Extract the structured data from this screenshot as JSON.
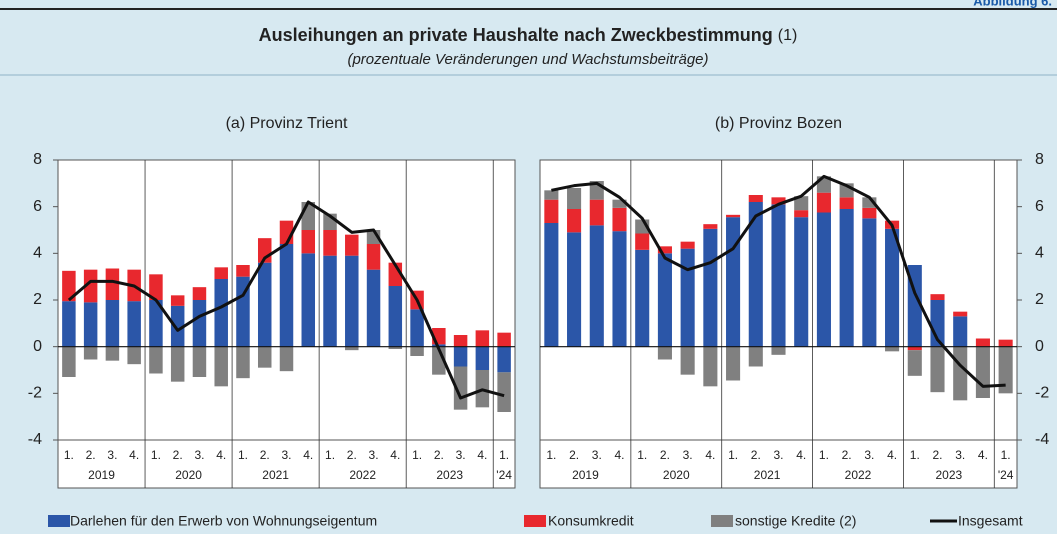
{
  "header": {
    "figure_label": "Abbildung 6.",
    "title": "Ausleihungen an private Haushalte nach Zweckbestimmung",
    "title_note": "(1)",
    "subtitle": "(prozentuale Veränderungen und Wachstumsbeiträge)"
  },
  "chart_data": [
    {
      "type": "bar",
      "title": "(a) Provinz Trient",
      "stacked": true,
      "categories": [
        "1.",
        "2.",
        "3.",
        "4.",
        "1.",
        "2.",
        "3.",
        "4.",
        "1.",
        "2.",
        "3.",
        "4.",
        "1.",
        "2.",
        "3.",
        "4.",
        "1.",
        "2.",
        "3.",
        "4.",
        "1."
      ],
      "groups": [
        "2019",
        "2020",
        "2021",
        "2022",
        "2023",
        "'24"
      ],
      "ylim": [
        -4,
        8
      ],
      "yticks": [
        -4,
        -2,
        0,
        2,
        4,
        6,
        8
      ],
      "series": [
        {
          "name": "Darlehen für den Erwerb von Wohnungseigentum",
          "color": "#2b56a8",
          "values": [
            1.95,
            1.9,
            2.0,
            1.95,
            2.0,
            1.75,
            2.0,
            2.9,
            3.0,
            3.6,
            4.4,
            4.0,
            3.9,
            3.9,
            3.3,
            2.6,
            1.6,
            0.1,
            -0.85,
            -1.0,
            -1.1
          ]
        },
        {
          "name": "Konsumkredit",
          "color": "#e8282e",
          "values": [
            1.3,
            1.4,
            1.35,
            1.35,
            1.1,
            0.45,
            0.55,
            0.5,
            0.5,
            1.05,
            1.0,
            1.0,
            1.1,
            0.9,
            1.1,
            1.0,
            0.8,
            0.7,
            0.5,
            0.7,
            0.6
          ]
        },
        {
          "name": "sonstige Kredite (2)",
          "color": "#808080",
          "values": [
            -1.3,
            -0.55,
            -0.6,
            -0.75,
            -1.15,
            -1.5,
            -1.3,
            -1.7,
            -1.35,
            -0.9,
            -1.05,
            1.2,
            0.7,
            -0.15,
            0.6,
            -0.1,
            -0.4,
            -1.2,
            -1.85,
            -1.6,
            -1.7
          ]
        },
        {
          "name": "Insgesamt",
          "color": "#111111",
          "type": "line",
          "values": [
            2.0,
            2.8,
            2.8,
            2.6,
            2.0,
            0.7,
            1.3,
            1.7,
            2.2,
            3.8,
            4.4,
            6.2,
            5.6,
            4.9,
            5.0,
            3.5,
            2.0,
            -0.1,
            -2.2,
            -1.85,
            -2.1
          ]
        }
      ]
    },
    {
      "type": "bar",
      "title": "(b) Provinz Bozen",
      "stacked": true,
      "categories": [
        "1.",
        "2.",
        "3.",
        "4.",
        "1.",
        "2.",
        "3.",
        "4.",
        "1.",
        "2.",
        "3.",
        "4.",
        "1.",
        "2.",
        "3.",
        "4.",
        "1.",
        "2.",
        "3.",
        "4.",
        "1."
      ],
      "groups": [
        "2019",
        "2020",
        "2021",
        "2022",
        "2023",
        "'24"
      ],
      "ylim": [
        -4,
        8
      ],
      "yticks": [
        -4,
        -2,
        0,
        2,
        4,
        6,
        8
      ],
      "series": [
        {
          "name": "Darlehen für den Erwerb von Wohnungseigentum",
          "color": "#2b56a8",
          "values": [
            5.3,
            4.9,
            5.2,
            4.95,
            4.15,
            4.0,
            4.2,
            5.05,
            5.55,
            6.2,
            6.1,
            5.55,
            5.75,
            5.9,
            5.5,
            5.05,
            3.5,
            2.0,
            1.3,
            0.0,
            0.0
          ]
        },
        {
          "name": "Konsumkredit",
          "color": "#e8282e",
          "values": [
            1.0,
            1.0,
            1.1,
            1.0,
            0.7,
            0.3,
            0.3,
            0.2,
            0.1,
            0.3,
            0.3,
            0.3,
            0.85,
            0.5,
            0.45,
            0.35,
            -0.15,
            0.25,
            0.2,
            0.35,
            0.3
          ]
        },
        {
          "name": "sonstige Kredite (2)",
          "color": "#808080",
          "values": [
            0.4,
            0.9,
            0.8,
            0.35,
            0.6,
            -0.55,
            -1.2,
            -1.7,
            -1.45,
            -0.85,
            -0.35,
            0.6,
            0.7,
            0.6,
            0.45,
            -0.2,
            -1.1,
            -1.95,
            -2.3,
            -2.2,
            -2.0
          ]
        },
        {
          "name": "Insgesamt",
          "color": "#111111",
          "type": "line",
          "values": [
            6.7,
            6.9,
            7.0,
            6.4,
            5.5,
            3.8,
            3.3,
            3.6,
            4.2,
            5.6,
            6.1,
            6.45,
            7.3,
            6.9,
            6.4,
            5.2,
            2.3,
            0.3,
            -0.8,
            -1.7,
            -1.65
          ]
        }
      ]
    }
  ]
}
